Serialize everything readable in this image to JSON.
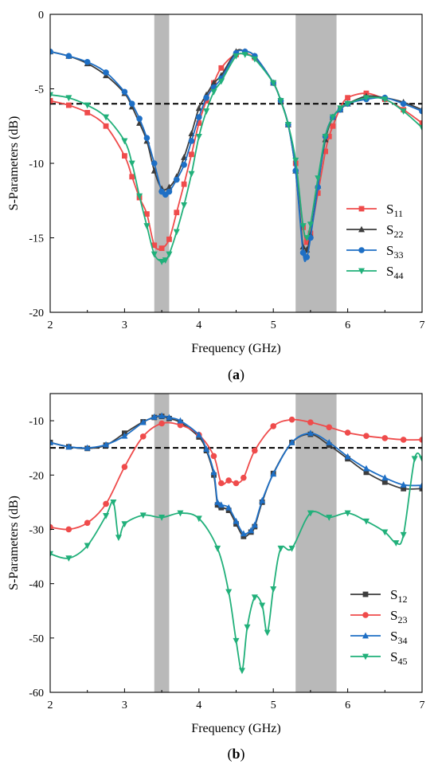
{
  "chart_data": [
    {
      "type": "line",
      "panel_label_open": "(",
      "panel_label_letter": "a",
      "panel_label_close": ")",
      "xlabel": "Frequency (GHz)",
      "ylabel": "S-Parameters (dB)",
      "xlim": [
        2,
        7
      ],
      "ylim": [
        -20,
        0
      ],
      "x_ticks": [
        2,
        3,
        4,
        5,
        6,
        7
      ],
      "y_ticks": [
        0,
        -5,
        -10,
        -15,
        -20
      ],
      "x_tick_labels": [
        "2",
        "3",
        "4",
        "5",
        "6",
        "7"
      ],
      "y_tick_labels": [
        "0",
        "-5",
        "-10",
        "-15",
        "-20"
      ],
      "grid": false,
      "legend_position": "lower-right",
      "reference_line": -6,
      "shaded_bands": [
        [
          3.4,
          3.6
        ],
        [
          5.3,
          5.85
        ]
      ],
      "series": [
        {
          "name": "S",
          "sub": "11",
          "color": "#ef4b4b",
          "marker": "square",
          "x": [
            2.0,
            2.25,
            2.5,
            2.75,
            3.0,
            3.1,
            3.2,
            3.3,
            3.4,
            3.5,
            3.6,
            3.7,
            3.8,
            3.9,
            4.0,
            4.1,
            4.2,
            4.3,
            4.5,
            4.75,
            5.0,
            5.1,
            5.2,
            5.3,
            5.4,
            5.45,
            5.5,
            5.6,
            5.7,
            5.75,
            5.8,
            5.9,
            6.0,
            6.25,
            6.5,
            6.75,
            7.0
          ],
          "y": [
            -5.8,
            -6.1,
            -6.6,
            -7.5,
            -9.5,
            -10.9,
            -12.3,
            -13.4,
            -15.5,
            -15.7,
            -15.1,
            -13.3,
            -11.4,
            -9.4,
            -7.3,
            -5.8,
            -4.6,
            -3.6,
            -2.7,
            -2.9,
            -4.6,
            -5.8,
            -7.4,
            -10.0,
            -14.3,
            -15.3,
            -14.7,
            -12.0,
            -9.2,
            -8.2,
            -7.5,
            -6.3,
            -5.6,
            -5.3,
            -5.7,
            -6.4,
            -7.3
          ]
        },
        {
          "name": "S",
          "sub": "22",
          "color": "#3d3d3d",
          "marker": "triangle-up",
          "x": [
            2.0,
            2.25,
            2.5,
            2.75,
            3.0,
            3.1,
            3.2,
            3.3,
            3.4,
            3.5,
            3.6,
            3.7,
            3.8,
            3.9,
            4.0,
            4.1,
            4.2,
            4.3,
            4.5,
            4.62,
            4.75,
            5.0,
            5.1,
            5.2,
            5.3,
            5.4,
            5.45,
            5.5,
            5.6,
            5.7,
            5.8,
            5.9,
            6.0,
            6.25,
            6.5,
            6.75,
            7.0
          ],
          "y": [
            -2.5,
            -2.8,
            -3.3,
            -4.1,
            -5.3,
            -6.2,
            -7.3,
            -8.5,
            -10.5,
            -11.7,
            -11.6,
            -10.9,
            -9.6,
            -8.0,
            -6.3,
            -5.4,
            -4.6,
            -4.1,
            -2.5,
            -2.5,
            -2.8,
            -4.6,
            -5.8,
            -7.4,
            -10.5,
            -15.6,
            -15.8,
            -14.8,
            -11.5,
            -8.4,
            -6.9,
            -6.4,
            -6.0,
            -5.5,
            -5.6,
            -5.9,
            -6.4
          ]
        },
        {
          "name": "S",
          "sub": "33",
          "color": "#1e6fc5",
          "marker": "circle",
          "x": [
            2.0,
            2.25,
            2.5,
            2.75,
            3.0,
            3.1,
            3.2,
            3.3,
            3.4,
            3.5,
            3.55,
            3.6,
            3.7,
            3.8,
            3.9,
            4.0,
            4.1,
            4.2,
            4.3,
            4.5,
            4.62,
            4.75,
            5.0,
            5.1,
            5.2,
            5.3,
            5.4,
            5.45,
            5.5,
            5.6,
            5.7,
            5.8,
            5.9,
            6.0,
            6.25,
            6.5,
            6.75,
            7.0
          ],
          "y": [
            -2.5,
            -2.8,
            -3.2,
            -3.9,
            -5.2,
            -6.0,
            -7.0,
            -8.3,
            -10.0,
            -11.9,
            -12.1,
            -11.9,
            -11.1,
            -10.1,
            -8.5,
            -6.9,
            -5.6,
            -4.9,
            -4.3,
            -2.6,
            -2.5,
            -2.8,
            -4.6,
            -5.8,
            -7.4,
            -10.5,
            -16.0,
            -16.3,
            -15.0,
            -11.6,
            -8.2,
            -6.9,
            -6.4,
            -6.0,
            -5.7,
            -5.6,
            -6.0,
            -6.5
          ]
        },
        {
          "name": "S",
          "sub": "44",
          "color": "#21b07a",
          "marker": "triangle-down",
          "x": [
            2.0,
            2.25,
            2.5,
            2.75,
            3.0,
            3.1,
            3.2,
            3.3,
            3.4,
            3.5,
            3.55,
            3.6,
            3.7,
            3.8,
            3.9,
            4.0,
            4.1,
            4.2,
            4.3,
            4.5,
            4.62,
            4.75,
            5.0,
            5.1,
            5.2,
            5.3,
            5.4,
            5.45,
            5.5,
            5.6,
            5.7,
            5.8,
            5.9,
            6.0,
            6.25,
            6.5,
            6.75,
            7.0
          ],
          "y": [
            -5.4,
            -5.6,
            -6.1,
            -6.9,
            -8.5,
            -10.0,
            -12.2,
            -14.2,
            -16.1,
            -16.6,
            -16.5,
            -16.1,
            -14.6,
            -12.8,
            -10.7,
            -8.2,
            -6.5,
            -5.2,
            -4.5,
            -2.8,
            -2.7,
            -3.0,
            -4.6,
            -5.8,
            -7.4,
            -9.8,
            -14.2,
            -15.0,
            -14.1,
            -11.0,
            -8.2,
            -6.9,
            -6.3,
            -6.0,
            -5.6,
            -5.7,
            -6.5,
            -7.6
          ]
        }
      ]
    },
    {
      "type": "line",
      "panel_label_open": "(",
      "panel_label_letter": "b",
      "panel_label_close": ")",
      "xlabel": "Frequency (GHz)",
      "ylabel": "S-Parameters (dB)",
      "xlim": [
        2,
        7
      ],
      "ylim": [
        -60,
        -5
      ],
      "x_ticks": [
        2,
        3,
        4,
        5,
        6,
        7
      ],
      "y_ticks": [
        -10,
        -20,
        -30,
        -40,
        -50,
        -60
      ],
      "x_tick_labels": [
        "2",
        "3",
        "4",
        "5",
        "6",
        "7"
      ],
      "y_tick_labels": [
        "-10",
        "-20",
        "-30",
        "-40",
        "-50",
        "-60"
      ],
      "grid": false,
      "legend_position": "lower-right",
      "reference_line": -15,
      "shaded_bands": [
        [
          3.4,
          3.6
        ],
        [
          5.3,
          5.85
        ]
      ],
      "series": [
        {
          "name": "S",
          "sub": "12",
          "color": "#3d3d3d",
          "marker": "square",
          "x": [
            2.0,
            2.25,
            2.5,
            2.75,
            3.0,
            3.25,
            3.4,
            3.5,
            3.6,
            3.75,
            4.0,
            4.1,
            4.2,
            4.25,
            4.3,
            4.4,
            4.5,
            4.6,
            4.7,
            4.75,
            4.85,
            5.0,
            5.25,
            5.5,
            5.75,
            6.0,
            6.25,
            6.5,
            6.75,
            7.0
          ],
          "y": [
            -14.0,
            -14.8,
            -15.1,
            -14.5,
            -12.3,
            -10.2,
            -9.4,
            -9.2,
            -9.6,
            -10.3,
            -13.0,
            -15.5,
            -20.0,
            -25.5,
            -26.0,
            -26.5,
            -29.0,
            -31.3,
            -30.5,
            -29.5,
            -25.0,
            -19.7,
            -14.0,
            -12.5,
            -14.5,
            -17.0,
            -19.5,
            -21.3,
            -22.5,
            -22.5
          ]
        },
        {
          "name": "S",
          "sub": "23",
          "color": "#ef4b4b",
          "marker": "circle",
          "x": [
            2.0,
            2.25,
            2.5,
            2.75,
            3.0,
            3.25,
            3.5,
            3.75,
            4.0,
            4.2,
            4.3,
            4.4,
            4.5,
            4.6,
            4.75,
            5.0,
            5.25,
            5.5,
            5.75,
            6.0,
            6.25,
            6.5,
            6.75,
            7.0
          ],
          "y": [
            -29.6,
            -30.0,
            -28.8,
            -25.3,
            -18.5,
            -12.9,
            -10.5,
            -10.8,
            -12.6,
            -16.5,
            -21.5,
            -21.0,
            -21.5,
            -20.5,
            -15.5,
            -11.0,
            -9.8,
            -10.3,
            -11.2,
            -12.2,
            -12.8,
            -13.2,
            -13.5,
            -13.5
          ]
        },
        {
          "name": "S",
          "sub": "34",
          "color": "#1e6fc5",
          "marker": "triangle-up",
          "x": [
            2.0,
            2.25,
            2.5,
            2.75,
            3.0,
            3.25,
            3.4,
            3.5,
            3.6,
            3.75,
            4.0,
            4.1,
            4.2,
            4.25,
            4.3,
            4.4,
            4.5,
            4.6,
            4.7,
            4.75,
            4.85,
            5.0,
            5.25,
            5.5,
            5.75,
            6.0,
            6.25,
            6.5,
            6.75,
            7.0
          ],
          "y": [
            -14.0,
            -14.8,
            -15.0,
            -14.4,
            -12.8,
            -10.3,
            -9.3,
            -9.1,
            -9.4,
            -10.0,
            -12.6,
            -15.2,
            -19.5,
            -25.0,
            -25.5,
            -26.0,
            -28.5,
            -30.8,
            -30.2,
            -29.2,
            -24.7,
            -19.8,
            -14.0,
            -12.3,
            -14.0,
            -16.6,
            -18.8,
            -20.5,
            -21.8,
            -21.9
          ]
        },
        {
          "name": "S",
          "sub": "45",
          "color": "#21b07a",
          "marker": "triangle-down",
          "x": [
            2.0,
            2.25,
            2.5,
            2.75,
            2.85,
            2.92,
            3.0,
            3.25,
            3.5,
            3.75,
            4.0,
            4.25,
            4.4,
            4.5,
            4.58,
            4.65,
            4.75,
            4.85,
            4.92,
            5.0,
            5.1,
            5.25,
            5.5,
            5.75,
            6.0,
            6.25,
            6.5,
            6.65,
            6.75,
            6.9,
            7.0
          ],
          "y": [
            -34.5,
            -35.3,
            -33.0,
            -27.5,
            -25.0,
            -31.5,
            -29.0,
            -27.4,
            -27.8,
            -27.0,
            -28.0,
            -33.5,
            -41.5,
            -50.5,
            -56.0,
            -48.0,
            -42.5,
            -44.0,
            -49.0,
            -41.0,
            -33.5,
            -33.5,
            -27.0,
            -27.8,
            -27.0,
            -28.5,
            -30.5,
            -32.5,
            -31.0,
            -17.0,
            -17.0
          ]
        }
      ]
    }
  ]
}
